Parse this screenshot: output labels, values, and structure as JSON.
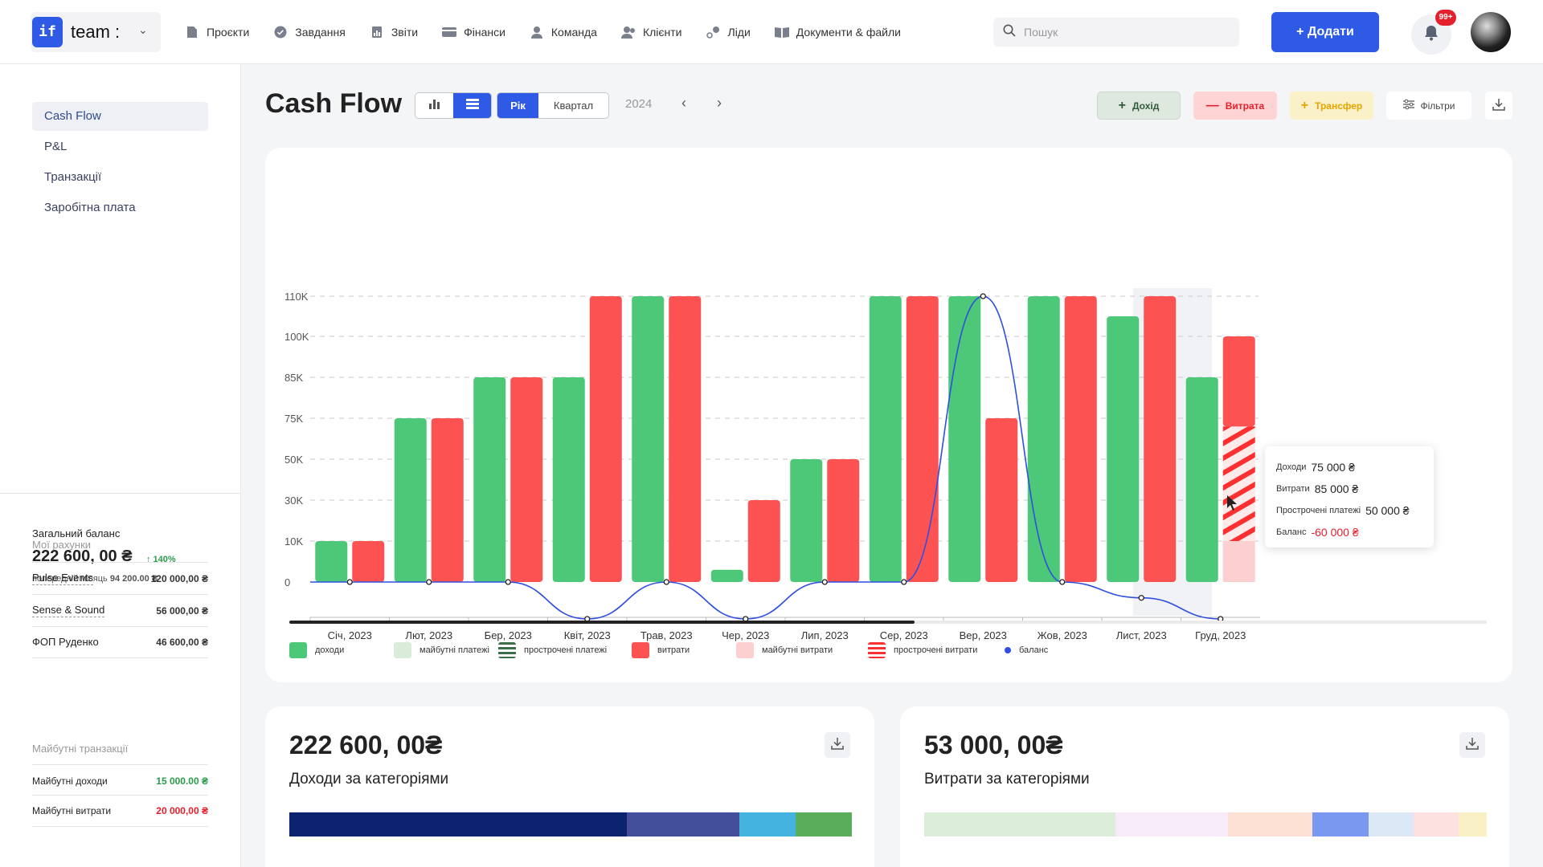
{
  "app": {
    "logo_mark": "if",
    "name": "team :"
  },
  "nav": [
    {
      "label": "Проєкти"
    },
    {
      "label": "Завдання"
    },
    {
      "label": "Звіти"
    },
    {
      "label": "Фінанси"
    },
    {
      "label": "Команда"
    },
    {
      "label": "Клієнти"
    },
    {
      "label": "Ліди"
    },
    {
      "label": "Документи & файли"
    }
  ],
  "search": {
    "placeholder": "Пошук"
  },
  "header": {
    "add_label": "+ Додати",
    "notifications_badge": "99+"
  },
  "sidebar": {
    "items": [
      {
        "label": "Cash Flow",
        "active": true
      },
      {
        "label": "P&L"
      },
      {
        "label": "Транзакції"
      },
      {
        "label": "Заробітна плата"
      }
    ],
    "balance_label": "Загальний баланс",
    "balance_value": "222 600, 00 ₴",
    "balance_delta": "↑ 140%",
    "prev_month_label": "попередній місяць",
    "prev_month_value": "94 200.00 ₴",
    "accounts_title": "Мої рахунки",
    "accounts": [
      {
        "name": "Pulse Events",
        "value": "120 000,00 ₴"
      },
      {
        "name": "Sense & Sound",
        "value": "56 000,00 ₴"
      },
      {
        "name": "ФОП Руденко",
        "value": "46 600,00 ₴"
      }
    ],
    "future_title": "Майбутні транзакції",
    "future": [
      {
        "name": "Майбутні доходи",
        "value": "15 000.00 ₴",
        "color": "#2a9b4a"
      },
      {
        "name": "Майбутні витрати",
        "value": "20 000,00 ₴",
        "color": "#e5202c"
      }
    ]
  },
  "page": {
    "title": "Cash Flow",
    "period_year": "Рік",
    "period_quarter": "Квартал",
    "year": "2024",
    "income_btn": "Дохід",
    "expense_btn": "Витрата",
    "transfer_btn": "Трансфер",
    "filters_btn": "Фільтри"
  },
  "chart_data": {
    "type": "bar",
    "categories": [
      "Січ, 2023",
      "Лют, 2023",
      "Бер, 2023",
      "Квіт, 2023",
      "Трав, 2023",
      "Чер, 2023",
      "Лип, 2023",
      "Сер, 2023",
      "Вер, 2023",
      "Жов, 2023",
      "Лист, 2023",
      "Груд, 2023"
    ],
    "y_ticks": [
      "0",
      "10K",
      "30K",
      "50K",
      "75K",
      "85K",
      "100K",
      "110K"
    ],
    "series": [
      {
        "name": "доходи",
        "color": "#4dc878",
        "values": [
          10000,
          75000,
          85000,
          85000,
          110000,
          3000,
          50000,
          110000,
          110000,
          110000,
          105000,
          85000
        ]
      },
      {
        "name": "витрати",
        "color": "#fc5252",
        "values": [
          10000,
          75000,
          85000,
          110000,
          110000,
          30000,
          50000,
          110000,
          75000,
          110000,
          110000,
          100000
        ]
      },
      {
        "name": "баланс",
        "color": "#2f4fe0",
        "values": [
          0,
          0,
          0,
          -7000,
          0,
          -7000,
          0,
          0,
          110000,
          0,
          -3000,
          -7000
        ]
      }
    ],
    "dec_breakdown": {
      "future_expenses": 10000,
      "overdue_expenses": 30000,
      "regular_expenses": 20000
    },
    "legend": [
      {
        "name": "доходи",
        "style": "solid",
        "color": "#4dc878"
      },
      {
        "name": "майбутні платежі",
        "style": "solid",
        "color": "#d8ecd9"
      },
      {
        "name": "прострочені платежі",
        "style": "striped",
        "color": "#3c6e4a"
      },
      {
        "name": "витрати",
        "style": "solid",
        "color": "#fc5252"
      },
      {
        "name": "майбутні витрати",
        "style": "solid",
        "color": "#fcd0d0"
      },
      {
        "name": "прострочені витрати",
        "style": "striped",
        "color": "#fc3030"
      },
      {
        "name": "баланс",
        "style": "dot",
        "color": "#2f4fe0"
      }
    ],
    "grid": true
  },
  "tooltip": {
    "rows": [
      {
        "label": "Доходи",
        "value": "75 000 ₴"
      },
      {
        "label": "Витрати",
        "value": "85 000 ₴"
      },
      {
        "label": "Прострочені платежі",
        "value": "50 000 ₴"
      },
      {
        "label": "Баланс",
        "value": "-60 000 ₴",
        "color": "#e5202c"
      }
    ]
  },
  "cards": [
    {
      "value": "222 600, 00₴",
      "title": "Доходи за категоріями",
      "segments": [
        {
          "share": 60,
          "color": "#0c2470"
        },
        {
          "share": 20,
          "color": "#434f9a"
        },
        {
          "share": 10,
          "color": "#45b3e0"
        },
        {
          "share": 10,
          "color": "#5aad5a"
        }
      ]
    },
    {
      "value": "53 000, 00₴",
      "title": "Витрати за категоріями",
      "segments": [
        {
          "share": 34,
          "color": "#dcedd9"
        },
        {
          "share": 20,
          "color": "#f7ebfa"
        },
        {
          "share": 15,
          "color": "#fde0d4"
        },
        {
          "share": 10,
          "color": "#7b98f0"
        },
        {
          "share": 8,
          "color": "#dde8f7"
        },
        {
          "share": 8,
          "color": "#fde1e1"
        },
        {
          "share": 5,
          "color": "#faf0c6"
        }
      ]
    }
  ]
}
